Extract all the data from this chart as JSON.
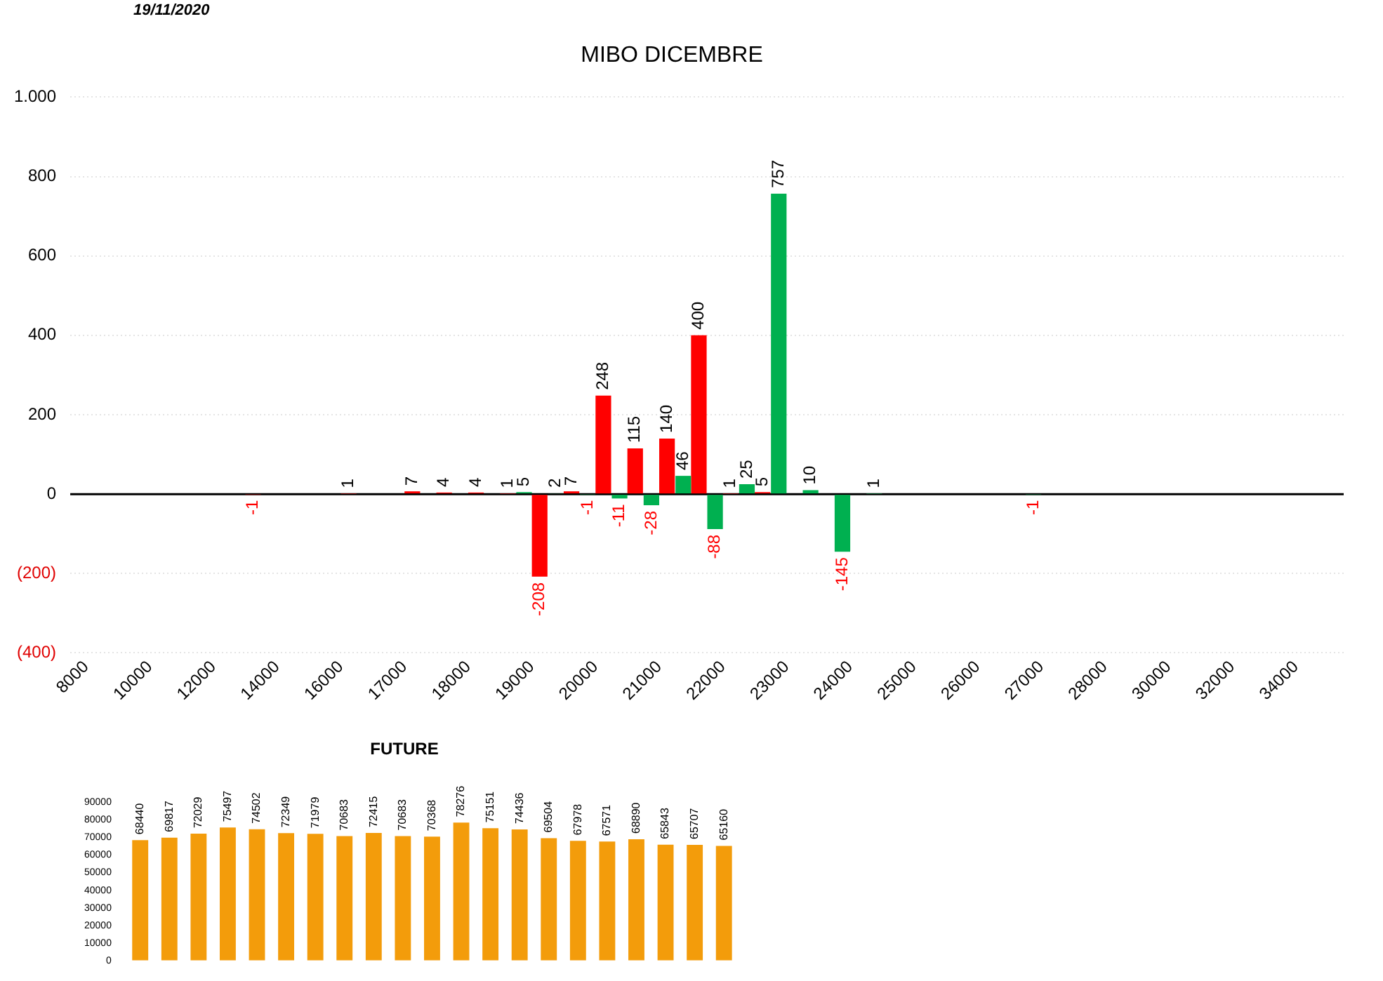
{
  "chart_data": [
    {
      "type": "bar",
      "title": "MIBO DICEMBRE",
      "annotations": [
        "19/11/2020"
      ],
      "categories": [
        "8000",
        null,
        "10000",
        null,
        "12000",
        null,
        "14000",
        null,
        "16000",
        null,
        "17000",
        null,
        "18000",
        null,
        "19000",
        null,
        "20000",
        null,
        "21000",
        null,
        "22000",
        null,
        "23000",
        null,
        "24000",
        null,
        "25000",
        null,
        "26000",
        null,
        "27000",
        null,
        "28000",
        null,
        "30000",
        null,
        "32000",
        null,
        "34000",
        null
      ],
      "series": [
        {
          "color": "#00b050",
          "values": [
            null,
            null,
            null,
            null,
            null,
            null,
            null,
            null,
            null,
            null,
            null,
            null,
            null,
            null,
            5,
            2,
            -1,
            -11,
            -28,
            46,
            -88,
            25,
            757,
            10,
            -145,
            1,
            null,
            null,
            null,
            null,
            -1,
            null,
            null,
            null,
            null,
            null,
            null,
            null,
            null,
            null
          ]
        },
        {
          "color": "#ff0000",
          "values": [
            null,
            null,
            null,
            null,
            null,
            -1,
            null,
            null,
            1,
            null,
            7,
            4,
            4,
            1,
            -208,
            7,
            248,
            115,
            140,
            400,
            1,
            5,
            null,
            null,
            null,
            null,
            null,
            null,
            null,
            null,
            null,
            null,
            null,
            null,
            null,
            null,
            null,
            null,
            null,
            null
          ]
        }
      ],
      "ylim": [
        -400,
        1000
      ],
      "yticks": [
        {
          "value": -400,
          "label": "(400)"
        },
        {
          "value": -200,
          "label": "(200)"
        },
        0,
        200,
        400,
        600,
        800,
        {
          "value": 1000,
          "label": "1.000"
        }
      ],
      "grid": "y",
      "legend": false,
      "data_labels": true,
      "ref_lines": [
        {
          "axis": "y",
          "value": 0,
          "color": "#000000"
        }
      ]
    },
    {
      "type": "bar",
      "title": "FUTURE",
      "categories": [
        null,
        null,
        null,
        null,
        null,
        null,
        null,
        null,
        null,
        null,
        null,
        null,
        null,
        null,
        null,
        null,
        null,
        null,
        null,
        null,
        null
      ],
      "values": [
        68440,
        69817,
        72029,
        75497,
        74502,
        72349,
        71979,
        70683,
        72415,
        70683,
        70368,
        78276,
        75151,
        74436,
        69504,
        67978,
        67571,
        68890,
        65843,
        65707,
        65160
      ],
      "color": "#f39c0b",
      "ylim": [
        0,
        90000
      ],
      "yticks": [
        0,
        10000,
        20000,
        30000,
        40000,
        50000,
        60000,
        70000,
        80000,
        90000
      ],
      "tick_labels": "y",
      "legend": false,
      "data_labels": true
    }
  ]
}
